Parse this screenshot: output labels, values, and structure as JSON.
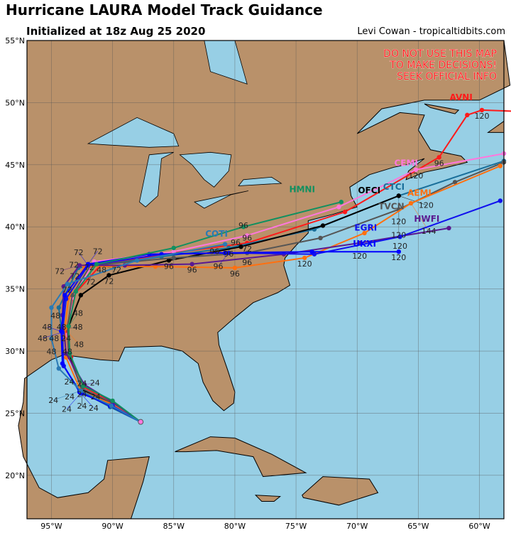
{
  "header": {
    "title": "Hurricane LAURA Model Track Guidance",
    "subtitle": "Initialized at 18z Aug 25 2020",
    "credit": "Levi Cowan - tropicaltidbits.com"
  },
  "warning": [
    "DO NOT USE THIS MAP",
    "TO MAKE DECISIONS!",
    "SEEK OFFICIAL INFO"
  ],
  "map": {
    "lon_range": [
      -97,
      -58
    ],
    "lat_range": [
      16.5,
      55
    ],
    "lon_ticks": [
      {
        "v": -95,
        "label": "95°W"
      },
      {
        "v": -90,
        "label": "90°W"
      },
      {
        "v": -85,
        "label": "85°W"
      },
      {
        "v": -80,
        "label": "80°W"
      },
      {
        "v": -75,
        "label": "75°W"
      },
      {
        "v": -70,
        "label": "70°W"
      },
      {
        "v": -65,
        "label": "65°W"
      },
      {
        "v": -60,
        "label": "60°W"
      }
    ],
    "lat_ticks": [
      {
        "v": 20,
        "label": "20°N"
      },
      {
        "v": 25,
        "label": "25°N"
      },
      {
        "v": 30,
        "label": "30°N"
      },
      {
        "v": 35,
        "label": "35°N"
      },
      {
        "v": 40,
        "label": "40°N"
      },
      {
        "v": 45,
        "label": "45°N"
      },
      {
        "v": 50,
        "label": "50°N"
      },
      {
        "v": 55,
        "label": "55°N"
      }
    ],
    "colors": {
      "ocean": "#97cfe5",
      "land": "#b9916a",
      "grid": "#555555"
    },
    "start": [
      -87.7,
      24.3
    ]
  },
  "models": [
    {
      "name": "AVNI",
      "color": "#ff1a1a",
      "pts": [
        [
          -87.7,
          24.3
        ],
        [
          -90,
          25.9
        ],
        [
          -92.4,
          27.1
        ],
        [
          -93.4,
          29.5
        ],
        [
          -93.8,
          31.5
        ],
        [
          -93.2,
          34.5
        ],
        [
          -90.9,
          37
        ],
        [
          -85,
          37.9
        ],
        [
          -79,
          38.7
        ],
        [
          -71,
          41.2
        ],
        [
          -63.3,
          45.6
        ],
        [
          -61,
          49
        ],
        [
          -59.8,
          49.4
        ],
        [
          -57,
          49.3
        ]
      ],
      "hours": {
        "4": "24",
        "6": "48",
        "8": "72",
        "10": "96",
        "12": "120"
      },
      "label": [
        -61.5,
        50.2
      ]
    },
    {
      "name": "CEMI",
      "color": "#ff77dd",
      "pts": [
        [
          -87.7,
          24.3
        ],
        [
          -90,
          25.8
        ],
        [
          -92.5,
          27
        ],
        [
          -93.6,
          29.5
        ],
        [
          -93.7,
          31.3
        ],
        [
          -93.3,
          34.3
        ],
        [
          -91.5,
          37.2
        ],
        [
          -85,
          38
        ],
        [
          -79,
          39.3
        ],
        [
          -71.5,
          41.6
        ],
        [
          -65.2,
          44.6
        ],
        [
          -58,
          45.9
        ]
      ],
      "hours": {
        "2": "24",
        "4": "48",
        "6": "72",
        "8": "96",
        "10": "120"
      },
      "label": [
        -66,
        44.9
      ]
    },
    {
      "name": "CTCI",
      "color": "#1a6f9a",
      "pts": [
        [
          -87.7,
          24.3
        ],
        [
          -90.2,
          25.5
        ],
        [
          -92.7,
          26.8
        ],
        [
          -94,
          28.8
        ],
        [
          -94.2,
          31.9
        ],
        [
          -94.4,
          33.5
        ],
        [
          -92.8,
          36.7
        ],
        [
          -86,
          37.6
        ],
        [
          -80.5,
          38.3
        ],
        [
          -73.5,
          39.8
        ],
        [
          -66.6,
          42.5
        ],
        [
          -58,
          45.3
        ]
      ],
      "hours": {
        "2": "24",
        "4": "48",
        "6": "72",
        "8": "96",
        "10": "120"
      },
      "label": [
        -67,
        43
      ]
    },
    {
      "name": "OFCI",
      "color": "#000000",
      "pts": [
        [
          -87.7,
          24.3
        ],
        [
          -90,
          25.8
        ],
        [
          -92.5,
          26.9
        ],
        [
          -93.5,
          29.5
        ],
        [
          -93.6,
          32
        ],
        [
          -92.6,
          34.5
        ],
        [
          -90.3,
          36.1
        ],
        [
          -85.4,
          37.3
        ],
        [
          -79.5,
          38.4
        ],
        [
          -72.8,
          40.1
        ],
        [
          -66.6,
          42.5
        ]
      ],
      "hours": {
        "2": "24",
        "4": "48",
        "6": "72",
        "7": "96",
        "10": "120"
      },
      "label": [
        -68.2,
        42.7
      ]
    },
    {
      "name": "TVCN",
      "color": "#555555",
      "pts": [
        [
          -87.7,
          24.3
        ],
        [
          -90,
          25.8
        ],
        [
          -92.5,
          27
        ],
        [
          -93.6,
          29.6
        ],
        [
          -93.7,
          31.8
        ],
        [
          -93.3,
          34.5
        ],
        [
          -91.8,
          36.9
        ],
        [
          -85,
          37.5
        ],
        [
          -79,
          37.9
        ],
        [
          -73,
          39.1
        ],
        [
          -66.6,
          41.4
        ],
        [
          -62,
          43.6
        ],
        [
          -58,
          45.2
        ]
      ],
      "hours": {
        "2": "24",
        "4": "48",
        "6": "72",
        "8": "96",
        "10": "120"
      },
      "label": [
        -67.2,
        41.4
      ]
    },
    {
      "name": "AEMI",
      "color": "#ff7010",
      "pts": [
        [
          -87.7,
          24.3
        ],
        [
          -90,
          25.7
        ],
        [
          -92.6,
          26.8
        ],
        [
          -93.8,
          29.5
        ],
        [
          -93.9,
          31.8
        ],
        [
          -93.6,
          34.3
        ],
        [
          -92.3,
          36.8
        ],
        [
          -86.5,
          36.8
        ],
        [
          -80,
          36.7
        ],
        [
          -74.3,
          37.5
        ],
        [
          -69.4,
          39.5
        ],
        [
          -65.6,
          41.9
        ],
        [
          -58.3,
          44.9
        ]
      ],
      "hours": {
        "2": "24",
        "4": "48",
        "6": "72",
        "8": "96",
        "9": "120",
        "11": "144"
      },
      "label": [
        -65.2,
        42.3
      ]
    },
    {
      "name": "HWFI",
      "color": "#5a1a90",
      "pts": [
        [
          -87.7,
          24.3
        ],
        [
          -90,
          25.9
        ],
        [
          -92.3,
          27.3
        ],
        [
          -93.8,
          29.8
        ],
        [
          -94.1,
          32.9
        ],
        [
          -94,
          35.2
        ],
        [
          -92.7,
          36.9
        ],
        [
          -89,
          36.9
        ],
        [
          -83.5,
          37
        ],
        [
          -76,
          37.8
        ],
        [
          -69.8,
          38.7
        ],
        [
          -62.5,
          39.9
        ]
      ],
      "hours": {
        "2": "24",
        "4": "48",
        "6": "72",
        "8": "96",
        "10": "120"
      },
      "label": [
        -64.3,
        40.4
      ]
    },
    {
      "name": "EGRI",
      "color": "#1010ee",
      "pts": [
        [
          -87.7,
          24.3
        ],
        [
          -90,
          25.6
        ],
        [
          -92.6,
          26.6
        ],
        [
          -94,
          28.8
        ],
        [
          -94.1,
          31.5
        ],
        [
          -93.8,
          34.2
        ],
        [
          -92,
          36.9
        ],
        [
          -86,
          37.8
        ],
        [
          -80.5,
          37.9
        ],
        [
          -73.5,
          37.8
        ],
        [
          -66.5,
          39.2
        ],
        [
          -58.3,
          42.1
        ]
      ],
      "hours": {
        "2": "24",
        "4": "48",
        "6": "72",
        "8": "96",
        "10": "120"
      },
      "label": [
        -69.3,
        39.7
      ]
    },
    {
      "name": "UKXI",
      "color": "#0000ff",
      "pts": [
        [
          -87.7,
          24.3
        ],
        [
          -90.2,
          25.6
        ],
        [
          -92.7,
          26.7
        ],
        [
          -94.1,
          29
        ],
        [
          -94.2,
          31.6
        ],
        [
          -93.9,
          34.5
        ],
        [
          -92,
          37
        ],
        [
          -87,
          37.8
        ],
        [
          -80.8,
          37.9
        ],
        [
          -73.7,
          38
        ],
        [
          -66.6,
          38
        ]
      ],
      "hours": {
        "2": "24",
        "4": "48",
        "6": "72",
        "8": "96",
        "10": "120"
      },
      "label": [
        -69.4,
        38.4
      ]
    },
    {
      "name": "HMNI",
      "color": "#119060",
      "pts": [
        [
          -87.7,
          24.3
        ],
        [
          -90,
          26
        ],
        [
          -92.4,
          27.2
        ],
        [
          -93.5,
          29.8
        ],
        [
          -93.6,
          32
        ],
        [
          -93,
          34.8
        ],
        [
          -91.3,
          37
        ],
        [
          -85,
          38.3
        ],
        [
          -79.3,
          40
        ],
        [
          -71.3,
          42
        ]
      ],
      "hours": {
        "2": "24",
        "4": "48",
        "6": "72",
        "8": "96"
      },
      "label": [
        -74.5,
        42.8
      ]
    },
    {
      "name": "COTI",
      "color": "#2a7ab5",
      "pts": [
        [
          -87.7,
          24.3
        ],
        [
          -90.1,
          25.6
        ],
        [
          -92.6,
          26.8
        ],
        [
          -94.4,
          28.6
        ],
        [
          -95,
          31
        ],
        [
          -95,
          33.5
        ],
        [
          -93.7,
          35.4
        ],
        [
          -88,
          37.3
        ],
        [
          -80.8,
          38.6
        ]
      ],
      "hours": {
        "2": "24",
        "4": "48",
        "6": "72",
        "8": "96"
      },
      "label": [
        -81.5,
        39.2
      ]
    }
  ]
}
